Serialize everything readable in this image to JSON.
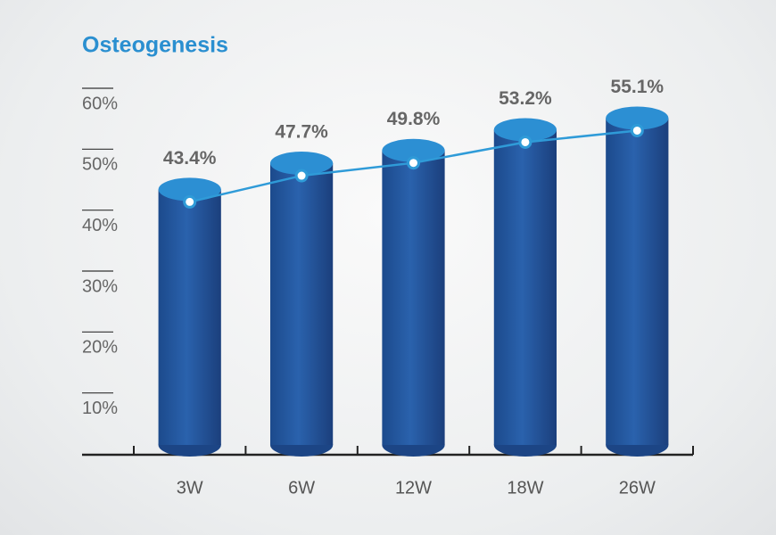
{
  "chart_data": {
    "type": "bar",
    "title": "Osteogenesis",
    "categories": [
      "3W",
      "6W",
      "12W",
      "18W",
      "26W"
    ],
    "values": [
      43.4,
      47.7,
      49.8,
      53.2,
      55.1
    ],
    "value_labels": [
      "43.4%",
      "47.7%",
      "49.8%",
      "53.2%",
      "55.1%"
    ],
    "color": "#24589e",
    "line_color": "#2f9bd8",
    "ylim": [
      0,
      60
    ],
    "yticks": [
      {
        "value": 10,
        "label": "10%"
      },
      {
        "value": 20,
        "label": "20%"
      },
      {
        "value": 30,
        "label": "30%"
      },
      {
        "value": 40,
        "label": "40%"
      },
      {
        "value": 50,
        "label": "50%"
      },
      {
        "value": 60,
        "label": "60%"
      }
    ]
  }
}
